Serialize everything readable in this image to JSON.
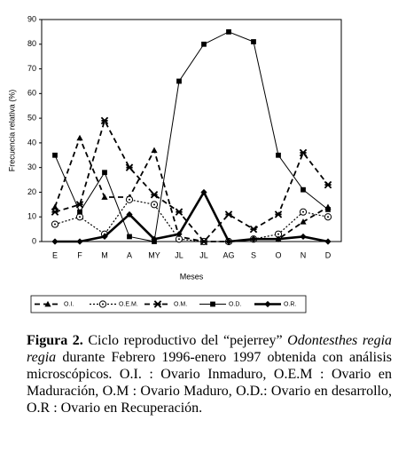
{
  "chart_data": {
    "type": "line",
    "y_label": "Frecuencia relativa (%)",
    "x_label": "Meses",
    "categories": [
      "E",
      "F",
      "M",
      "A",
      "MY",
      "JL",
      "JL",
      "AG",
      "S",
      "O",
      "N",
      "D"
    ],
    "ylim": [
      0,
      90
    ],
    "yticks": [
      0,
      10,
      20,
      30,
      40,
      50,
      60,
      70,
      80,
      90
    ],
    "series": [
      {
        "name": "O.I.",
        "color": "#000000",
        "marker": "triangle",
        "dash": "6,4",
        "width": 1.8,
        "values": [
          14,
          42,
          18,
          18,
          37,
          2,
          0,
          0,
          1,
          1,
          8,
          14
        ]
      },
      {
        "name": "O.E.M.",
        "color": "#000000",
        "marker": "circle",
        "dash": "2,2",
        "width": 1.2,
        "values": [
          7,
          10,
          3,
          17,
          15,
          1,
          0,
          0,
          1,
          3,
          12,
          10
        ]
      },
      {
        "name": "O.M.",
        "color": "#000000",
        "marker": "star",
        "dash": "6,4",
        "width": 1.8,
        "values": [
          12,
          15,
          49,
          30,
          19,
          12,
          0,
          11,
          5,
          11,
          36,
          23
        ]
      },
      {
        "name": "O.D.",
        "color": "#000000",
        "marker": "square",
        "dash": "none",
        "width": 1,
        "values": [
          35,
          12,
          28,
          2,
          0,
          65,
          80,
          85,
          81,
          35,
          21,
          13
        ]
      },
      {
        "name": "O.R.",
        "color": "#000000",
        "marker": "diamond",
        "dash": "none",
        "width": 2.6,
        "values": [
          0,
          0,
          2,
          11,
          1,
          3,
          20,
          0,
          1,
          1,
          2,
          0
        ]
      }
    ]
  },
  "caption": {
    "label": "Figura 2.",
    "text_before": "Ciclo reproductivo del “pejerrey”",
    "species": "Odontesthes regia regia",
    "text_after": "durante Febrero 1996-enero 1997 obtenida con análisis microscópicos.  O.I. : Ovario Inmaduro, O.E.M : Ovario en Maduración, O.M : Ovario Maduro, O.D.: Ovario en desarrollo, O.R : Ovario en Recuperación."
  }
}
